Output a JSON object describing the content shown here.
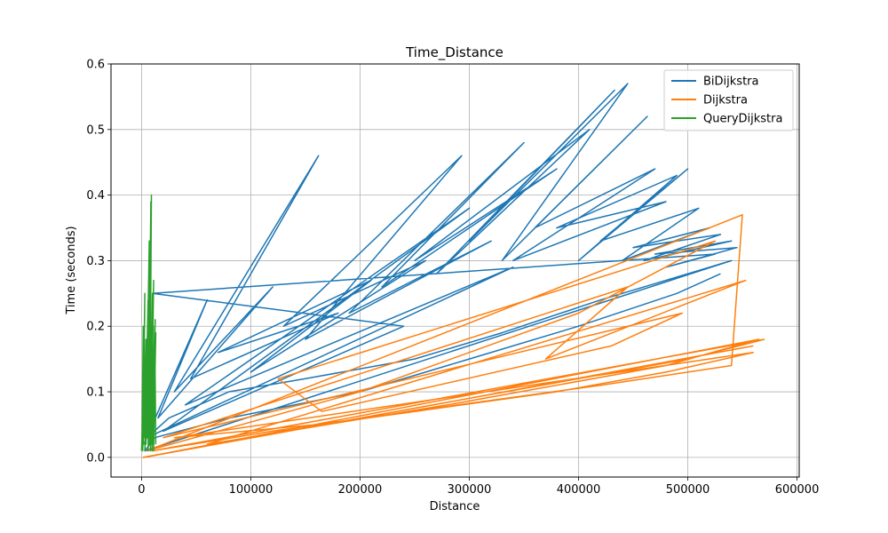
{
  "chart_data": {
    "type": "line",
    "title": "Time_Distance",
    "xlabel": "Distance",
    "ylabel": "Time (seconds)",
    "xlim": [
      -28000,
      602000
    ],
    "ylim": [
      -0.03,
      0.6
    ],
    "xticks": [
      0,
      100000,
      200000,
      300000,
      400000,
      500000,
      600000
    ],
    "xtick_labels": [
      "0",
      "100000",
      "200000",
      "300000",
      "400000",
      "500000",
      "600000"
    ],
    "yticks": [
      0.0,
      0.1,
      0.2,
      0.3,
      0.4,
      0.5,
      0.6
    ],
    "ytick_labels": [
      "0.0",
      "0.1",
      "0.2",
      "0.3",
      "0.4",
      "0.5",
      "0.6"
    ],
    "grid": true,
    "legend_position": "top-right",
    "series": [
      {
        "name": "BiDijkstra",
        "color": "#1f77b4",
        "x": [
          2000,
          60000,
          15000,
          120000,
          30000,
          162000,
          45000,
          180000,
          70000,
          210000,
          100000,
          260000,
          130000,
          293000,
          150000,
          320000,
          190000,
          350000,
          220000,
          380000,
          250000,
          410000,
          270000,
          433000,
          300000,
          445000,
          330000,
          463000,
          360000,
          470000,
          340000,
          480000,
          380000,
          490000,
          400000,
          500000,
          420000,
          510000,
          440000,
          520000,
          450000,
          530000,
          460000,
          540000,
          470000,
          545000,
          480000,
          525000,
          10000,
          240000,
          20000,
          300000,
          40000,
          340000,
          5000,
          25000,
          80000,
          150000,
          250000,
          330000,
          420000,
          500000,
          540000,
          3000,
          12000,
          80000,
          200000,
          300000,
          400000,
          490000,
          530000
        ],
        "y": [
          0.02,
          0.24,
          0.06,
          0.26,
          0.1,
          0.46,
          0.12,
          0.22,
          0.16,
          0.27,
          0.13,
          0.3,
          0.2,
          0.46,
          0.18,
          0.33,
          0.22,
          0.48,
          0.26,
          0.44,
          0.3,
          0.5,
          0.28,
          0.56,
          0.33,
          0.57,
          0.3,
          0.52,
          0.35,
          0.44,
          0.3,
          0.39,
          0.35,
          0.43,
          0.3,
          0.44,
          0.33,
          0.38,
          0.3,
          0.35,
          0.32,
          0.34,
          0.3,
          0.33,
          0.31,
          0.32,
          0.29,
          0.31,
          0.25,
          0.2,
          0.04,
          0.38,
          0.08,
          0.29,
          0.03,
          0.06,
          0.1,
          0.12,
          0.15,
          0.19,
          0.24,
          0.28,
          0.3,
          0.01,
          0.03,
          0.06,
          0.1,
          0.15,
          0.2,
          0.25,
          0.28
        ]
      },
      {
        "name": "Dijkstra",
        "color": "#ff7f0e",
        "x": [
          1000,
          100000,
          200000,
          300000,
          400000,
          500000,
          570000,
          10000,
          120000,
          250000,
          380000,
          480000,
          560000,
          30000,
          160000,
          290000,
          420000,
          540000,
          550000,
          5000,
          200000,
          400000,
          525000,
          125000,
          165000,
          430000,
          495000,
          20000,
          445000,
          370000,
          553000,
          60000,
          280000,
          480000,
          565000,
          2000,
          300000,
          560000
        ],
        "y": [
          0.0,
          0.03,
          0.06,
          0.09,
          0.12,
          0.15,
          0.18,
          0.01,
          0.04,
          0.07,
          0.1,
          0.13,
          0.16,
          0.03,
          0.05,
          0.08,
          0.11,
          0.14,
          0.37,
          0.01,
          0.1,
          0.22,
          0.33,
          0.12,
          0.07,
          0.17,
          0.22,
          0.03,
          0.26,
          0.15,
          0.27,
          0.02,
          0.08,
          0.14,
          0.18,
          0.0,
          0.09,
          0.17
        ]
      },
      {
        "name": "QueryDijkstra",
        "color": "#2ca02c",
        "x": [
          0,
          800,
          400,
          1500,
          600,
          2500,
          1000,
          3000,
          1500,
          4000,
          2000,
          5000,
          3000,
          6000,
          4000,
          7000,
          5000,
          8000,
          6000,
          8500,
          7000,
          9000,
          7500,
          10000,
          8000,
          11000,
          9000,
          12000,
          9500,
          12500,
          10000,
          13000,
          11000,
          12000,
          13000
        ],
        "y": [
          0.01,
          0.06,
          0.02,
          0.2,
          0.03,
          0.08,
          0.01,
          0.25,
          0.02,
          0.18,
          0.03,
          0.1,
          0.01,
          0.24,
          0.02,
          0.33,
          0.03,
          0.15,
          0.01,
          0.39,
          0.02,
          0.4,
          0.02,
          0.25,
          0.01,
          0.27,
          0.02,
          0.2,
          0.01,
          0.21,
          0.02,
          0.19,
          0.01,
          0.2,
          0.02
        ]
      }
    ]
  }
}
